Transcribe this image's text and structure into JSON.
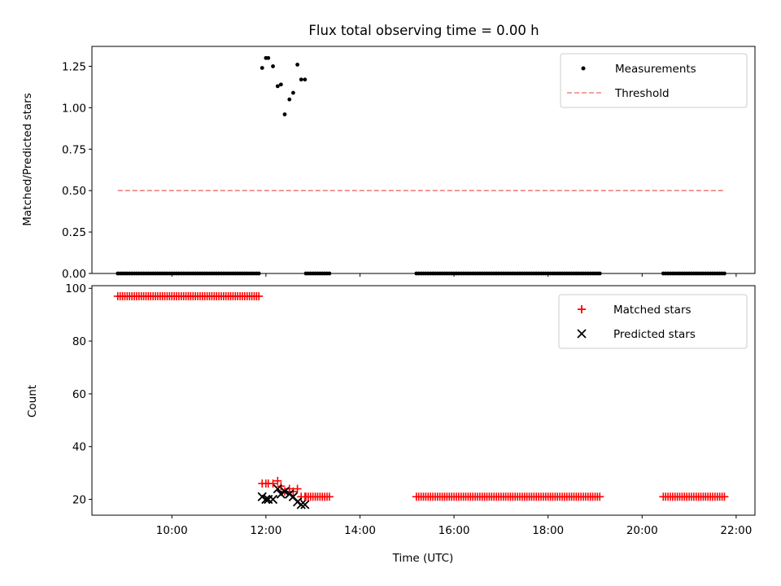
{
  "title": "Flux total observing time = 0.00 h",
  "colors": {
    "measurement": "#000000",
    "threshold": "#f08080",
    "matched": "#ff0000",
    "predicted": "#000000"
  },
  "chart_data": [
    {
      "type": "scatter",
      "name": "ratio",
      "ylabel": "Matched/Predicted stars",
      "xlim": [
        8.3,
        22.4
      ],
      "ylim": [
        0,
        1.37
      ],
      "yticks": [
        0.0,
        0.25,
        0.5,
        0.75,
        1.0,
        1.25
      ],
      "ytick_labels": [
        "0.00",
        "0.25",
        "0.50",
        "0.75",
        "1.00",
        "1.25"
      ],
      "legend": {
        "position": "top-right",
        "entries": [
          "Measurements",
          "Threshold"
        ]
      },
      "threshold": {
        "label": "Threshold",
        "value": 0.5,
        "x_range": [
          8.85,
          21.75
        ]
      },
      "measurements": {
        "label": "Measurements",
        "points": [
          [
            11.92,
            1.24
          ],
          [
            12.0,
            1.3
          ],
          [
            12.05,
            1.3
          ],
          [
            12.15,
            1.25
          ],
          [
            12.25,
            1.13
          ],
          [
            12.32,
            1.14
          ],
          [
            12.4,
            0.96
          ],
          [
            12.5,
            1.05
          ],
          [
            12.58,
            1.09
          ],
          [
            12.67,
            1.26
          ],
          [
            12.75,
            1.17
          ],
          [
            12.83,
            1.17
          ]
        ],
        "zero_runs": [
          [
            8.85,
            11.87,
            0.05
          ],
          [
            12.85,
            13.35,
            0.05
          ],
          [
            15.2,
            19.1,
            0.05
          ],
          [
            20.45,
            21.75,
            0.05
          ]
        ]
      }
    },
    {
      "type": "scatter",
      "name": "counts",
      "xlabel": "Time (UTC)",
      "ylabel": "Count",
      "xlim": [
        8.3,
        22.4
      ],
      "ylim": [
        14.0,
        101.0
      ],
      "yticks": [
        20,
        40,
        60,
        80,
        100
      ],
      "ytick_labels": [
        "20",
        "40",
        "60",
        "80",
        "100"
      ],
      "xticks": [
        10,
        12,
        14,
        16,
        18,
        20,
        22
      ],
      "xtick_labels": [
        "10:00",
        "12:00",
        "14:00",
        "16:00",
        "18:00",
        "20:00",
        "22:00"
      ],
      "legend": {
        "position": "top-right",
        "entries": [
          "Matched stars",
          "Predicted stars"
        ]
      },
      "matched": {
        "label": "Matched stars",
        "runs": [
          [
            8.85,
            11.87,
            97,
            0.05
          ],
          [
            12.85,
            13.35,
            21,
            0.05
          ],
          [
            15.2,
            19.1,
            21,
            0.05
          ],
          [
            20.45,
            21.75,
            21,
            0.05
          ]
        ],
        "points": [
          [
            11.92,
            26
          ],
          [
            12.0,
            26
          ],
          [
            12.05,
            26
          ],
          [
            12.15,
            26
          ],
          [
            12.25,
            27
          ],
          [
            12.32,
            25
          ],
          [
            12.4,
            23
          ],
          [
            12.5,
            24
          ],
          [
            12.58,
            23
          ],
          [
            12.67,
            24
          ],
          [
            12.75,
            21
          ],
          [
            12.83,
            21
          ]
        ]
      },
      "predicted": {
        "label": "Predicted stars",
        "points": [
          [
            11.92,
            21
          ],
          [
            12.0,
            20
          ],
          [
            12.05,
            20
          ],
          [
            12.15,
            20
          ],
          [
            12.25,
            24
          ],
          [
            12.32,
            22
          ],
          [
            12.4,
            23
          ],
          [
            12.5,
            22
          ],
          [
            12.58,
            21
          ],
          [
            12.67,
            19
          ],
          [
            12.75,
            18
          ],
          [
            12.83,
            18
          ]
        ]
      }
    }
  ]
}
